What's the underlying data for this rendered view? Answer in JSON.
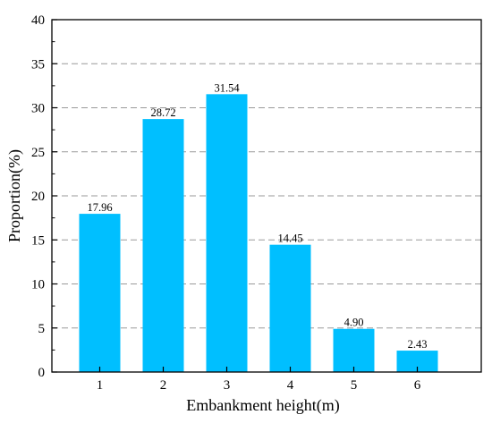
{
  "chart_data": {
    "type": "bar",
    "title": "",
    "xlabel": "Embankment height(m)",
    "ylabel": "Proportion(%)",
    "categories": [
      "1",
      "2",
      "3",
      "4",
      "5",
      "6"
    ],
    "values": [
      17.96,
      28.72,
      31.54,
      14.45,
      4.9,
      2.43
    ],
    "value_labels": [
      "17.96",
      "28.72",
      "31.54",
      "14.45",
      "4.90",
      "2.43"
    ],
    "ylim": [
      0,
      40
    ],
    "yticks": [
      "0",
      "5",
      "10",
      "15",
      "20",
      "25",
      "30",
      "35",
      "40"
    ],
    "grid": "horizontal dashed",
    "bar_color": "#00BFFF",
    "grid_color": "#9a9a9a"
  }
}
